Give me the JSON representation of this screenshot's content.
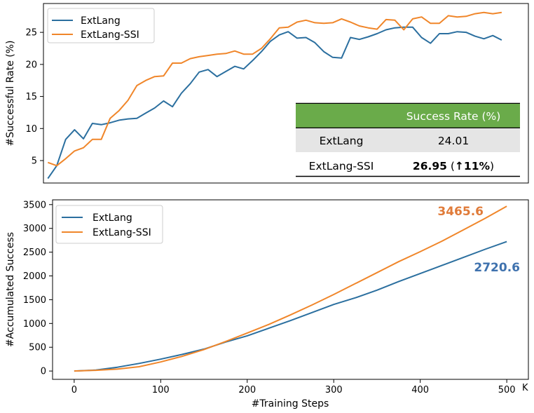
{
  "colors": {
    "extlang": "#2b6f9f",
    "ssi": "#f0862a",
    "table_header": "#6aab4a",
    "table_row_alt": "#e5e5e5",
    "endlabel_extlang": "#3f72ae",
    "endlabel_ssi": "#e07b39"
  },
  "chart_data": [
    {
      "type": "line",
      "ylabel": "#Successful Rate (%)",
      "xlim": [
        -20,
        525
      ],
      "ylim": [
        1.5,
        29.5
      ],
      "yticks": [
        5,
        10,
        15,
        20,
        25
      ],
      "ytick_labels": [
        "5",
        "10",
        "15",
        "20",
        "25"
      ],
      "legend_position": "top-left",
      "series": [
        {
          "name": "ExtLang",
          "x": [
            -15,
            -5,
            5,
            15,
            25,
            35,
            45,
            55,
            65,
            75,
            85,
            95,
            105,
            115,
            125,
            135,
            145,
            155,
            165,
            175,
            185,
            195,
            205,
            215,
            225,
            235,
            245,
            255,
            265,
            275,
            285,
            295,
            305,
            315,
            325,
            335,
            345,
            355,
            365,
            375,
            385,
            395,
            405,
            415,
            425,
            435,
            445,
            455,
            465,
            475,
            485,
            495
          ],
          "y": [
            2.2,
            4.2,
            8.3,
            9.8,
            8.4,
            10.8,
            10.6,
            10.9,
            11.3,
            11.5,
            11.6,
            12.4,
            13.2,
            14.3,
            13.4,
            15.5,
            17.0,
            18.8,
            19.2,
            18.1,
            18.9,
            19.7,
            19.3,
            20.6,
            22.0,
            23.6,
            24.6,
            25.1,
            24.1,
            24.2,
            23.4,
            22.0,
            21.1,
            21.0,
            24.2,
            23.9,
            24.3,
            24.8,
            25.4,
            25.7,
            25.8,
            25.8,
            24.2,
            23.3,
            24.8,
            24.8,
            25.1,
            25.0,
            24.4,
            24.0,
            24.5,
            23.8
          ]
        },
        {
          "name": "ExtLang-SSI",
          "x": [
            -15,
            -5,
            5,
            15,
            25,
            35,
            45,
            55,
            65,
            75,
            85,
            95,
            105,
            115,
            125,
            135,
            145,
            155,
            165,
            175,
            185,
            195,
            205,
            215,
            225,
            235,
            245,
            255,
            265,
            275,
            285,
            295,
            305,
            315,
            325,
            335,
            345,
            355,
            365,
            375,
            385,
            395,
            405,
            415,
            425,
            435,
            445,
            455,
            465,
            475,
            485,
            495
          ],
          "y": [
            4.7,
            4.2,
            5.3,
            6.5,
            7.0,
            8.3,
            8.3,
            11.6,
            12.8,
            14.4,
            16.7,
            17.5,
            18.1,
            18.2,
            20.2,
            20.2,
            20.9,
            21.2,
            21.4,
            21.6,
            21.7,
            22.1,
            21.6,
            21.6,
            22.5,
            24.0,
            25.7,
            25.8,
            26.6,
            26.9,
            26.5,
            26.4,
            26.5,
            27.1,
            26.6,
            26.0,
            25.7,
            25.5,
            27.0,
            26.9,
            25.4,
            27.1,
            27.4,
            26.4,
            26.4,
            27.6,
            27.4,
            27.5,
            27.9,
            28.1,
            27.9,
            28.1
          ]
        }
      ],
      "table": {
        "header": [
          "",
          "Success Rate (%)"
        ],
        "rows": [
          {
            "method": "ExtLang",
            "value": "24.01"
          },
          {
            "method": "ExtLang-SSI",
            "value_bold": "26.95",
            "open": " (",
            "arrow": "↑",
            "pct": "11%",
            "close": ")"
          }
        ]
      }
    },
    {
      "type": "line",
      "xlabel": "#Training Steps",
      "ylabel": "#Accumulated Success",
      "x_unit_suffix": "K",
      "xlim": [
        -25,
        525
      ],
      "ylim": [
        -175,
        3600
      ],
      "xticks": [
        0,
        100,
        200,
        300,
        400,
        500
      ],
      "xtick_labels": [
        "0",
        "100",
        "200",
        "300",
        "400",
        "500"
      ],
      "yticks": [
        0,
        500,
        1000,
        1500,
        2000,
        2500,
        3000,
        3500
      ],
      "ytick_labels": [
        "0",
        "500",
        "1000",
        "1500",
        "2000",
        "2500",
        "3000",
        "3500"
      ],
      "legend_position": "top-left",
      "series": [
        {
          "name": "ExtLang",
          "x": [
            0,
            25,
            50,
            75,
            100,
            125,
            150,
            175,
            200,
            225,
            250,
            275,
            300,
            325,
            350,
            375,
            400,
            425,
            450,
            475,
            500
          ],
          "y": [
            0,
            20,
            80,
            160,
            250,
            350,
            460,
            610,
            740,
            900,
            1060,
            1230,
            1400,
            1540,
            1700,
            1880,
            2050,
            2220,
            2390,
            2560,
            2720.6
          ],
          "end_label": "2720.6"
        },
        {
          "name": "ExtLang-SSI",
          "x": [
            0,
            25,
            50,
            75,
            100,
            125,
            150,
            175,
            200,
            225,
            250,
            275,
            300,
            325,
            350,
            375,
            400,
            425,
            450,
            475,
            500
          ],
          "y": [
            0,
            15,
            40,
            90,
            190,
            310,
            450,
            620,
            800,
            980,
            1180,
            1390,
            1610,
            1840,
            2070,
            2300,
            2510,
            2730,
            2970,
            3210,
            3465.6
          ],
          "end_label": "3465.6"
        }
      ]
    }
  ]
}
